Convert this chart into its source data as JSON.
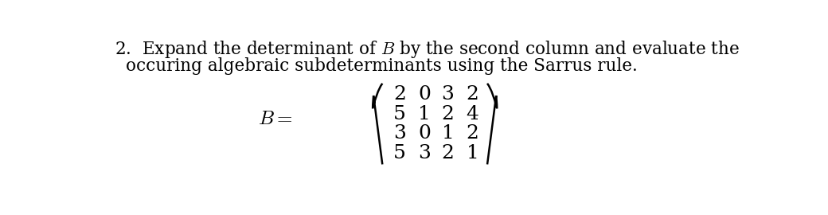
{
  "line1": "2.  Expand the determinant of $B$ by the second column and evaluate the",
  "line2": "occuring algebraic subdeterminants using the Sarrus rule.",
  "matrix_label": "$B =$",
  "matrix": [
    [
      "2",
      "0",
      "3",
      "2"
    ],
    [
      "5",
      "1",
      "2",
      "4"
    ],
    [
      "3",
      "0",
      "1",
      "2"
    ],
    [
      "5",
      "3",
      "2",
      "1"
    ]
  ],
  "bg_color": "#ffffff",
  "text_color": "#000000",
  "fontsize_text": 15.5,
  "fontsize_matrix": 18,
  "fontsize_label": 18
}
